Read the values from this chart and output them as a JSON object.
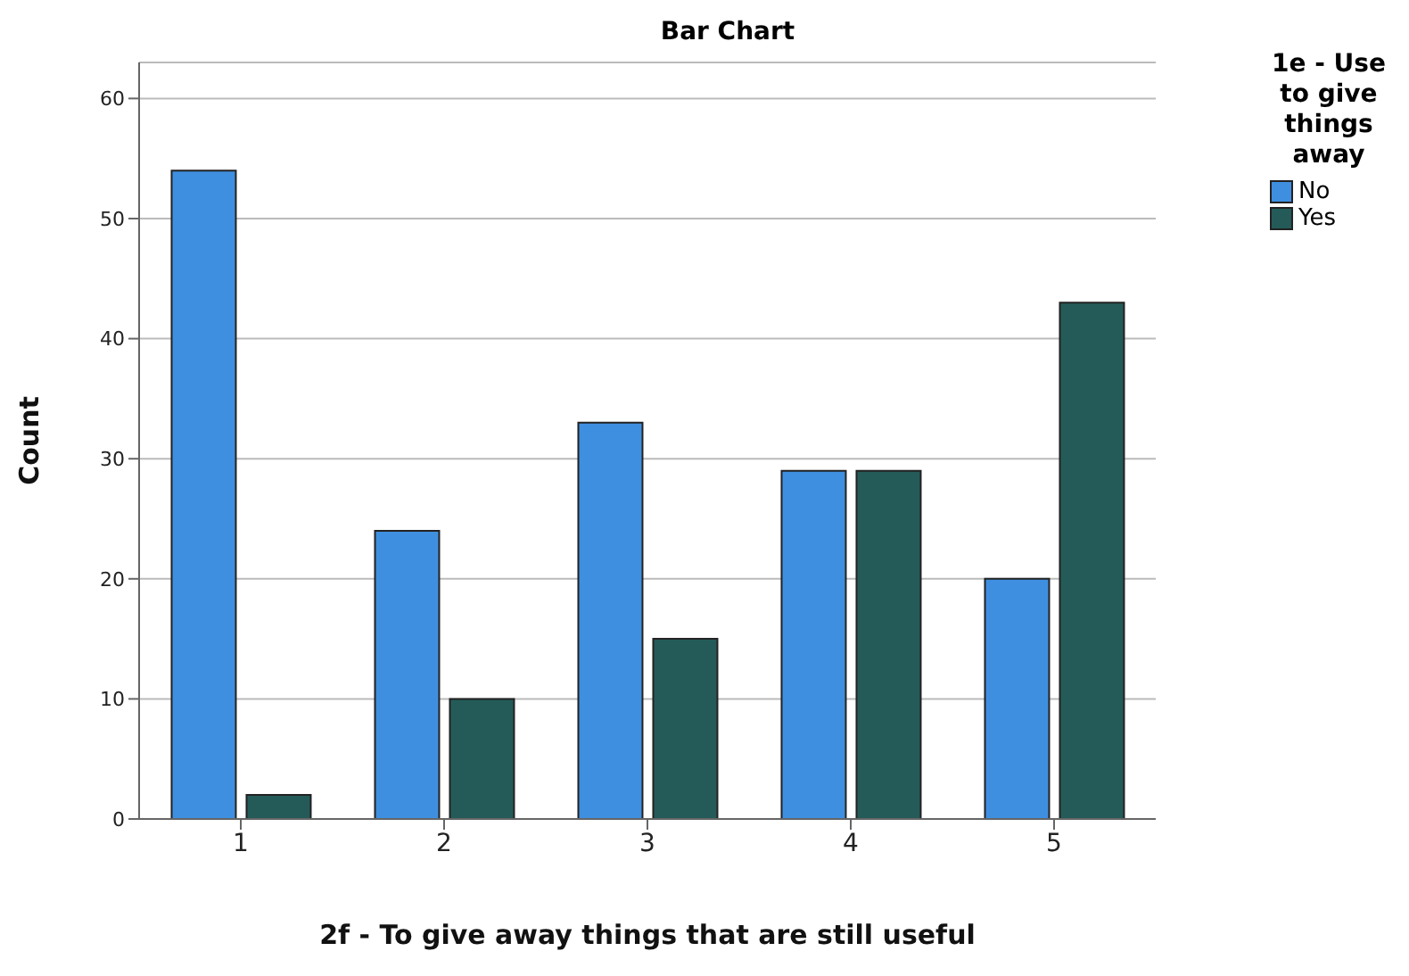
{
  "chart_data": {
    "type": "bar",
    "title": "Bar Chart",
    "xlabel": "2f - To give away things that are still useful",
    "ylabel": "Count",
    "legend_title": "1e - Use to give things away",
    "categories": [
      "1",
      "2",
      "3",
      "4",
      "5"
    ],
    "series": [
      {
        "name": "No",
        "color": "#3f8fe0",
        "values": [
          54,
          24,
          33,
          29,
          20
        ]
      },
      {
        "name": "Yes",
        "color": "#245b59",
        "values": [
          2,
          10,
          15,
          29,
          43
        ]
      }
    ],
    "ylim": [
      0,
      63
    ],
    "yticks": [
      0,
      10,
      20,
      30,
      40,
      50,
      60
    ],
    "grid": "y",
    "legend": "right"
  }
}
